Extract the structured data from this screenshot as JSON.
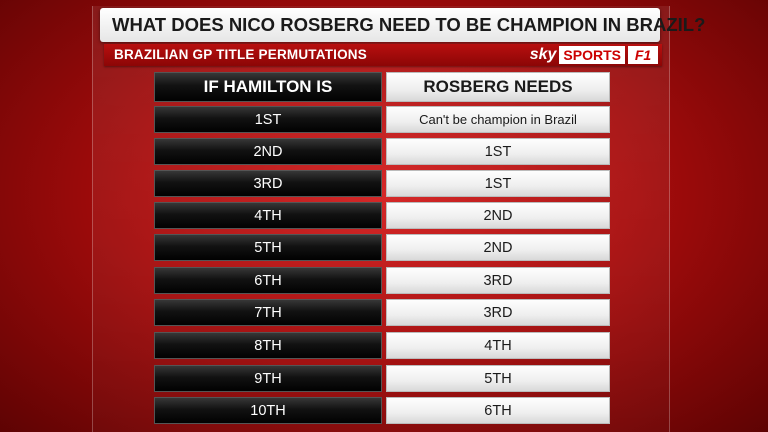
{
  "title": "WHAT DOES NICO ROSBERG NEED TO BE CHAMPION IN BRAZIL?",
  "subtitle": "BRAZILIAN GP TITLE PERMUTATIONS",
  "logo": {
    "sky": "sky",
    "sports": "SPORTS",
    "f1": "F1"
  },
  "table": {
    "headers": [
      "IF HAMILTON IS",
      "ROSBERG NEEDS"
    ],
    "rows": [
      {
        "hamilton": "1ST",
        "rosberg": "Can't be champion in Brazil"
      },
      {
        "hamilton": "2ND",
        "rosberg": "1ST"
      },
      {
        "hamilton": "3RD",
        "rosberg": "1ST"
      },
      {
        "hamilton": "4TH",
        "rosberg": "2ND"
      },
      {
        "hamilton": "5TH",
        "rosberg": "2ND"
      },
      {
        "hamilton": "6TH",
        "rosberg": "3RD"
      },
      {
        "hamilton": "7TH",
        "rosberg": "3RD"
      },
      {
        "hamilton": "8TH",
        "rosberg": "4TH"
      },
      {
        "hamilton": "9TH",
        "rosberg": "5TH"
      },
      {
        "hamilton": "10TH",
        "rosberg": "6TH"
      }
    ]
  },
  "colors": {
    "background": "#b30f0f",
    "accent": "#cc0000"
  }
}
